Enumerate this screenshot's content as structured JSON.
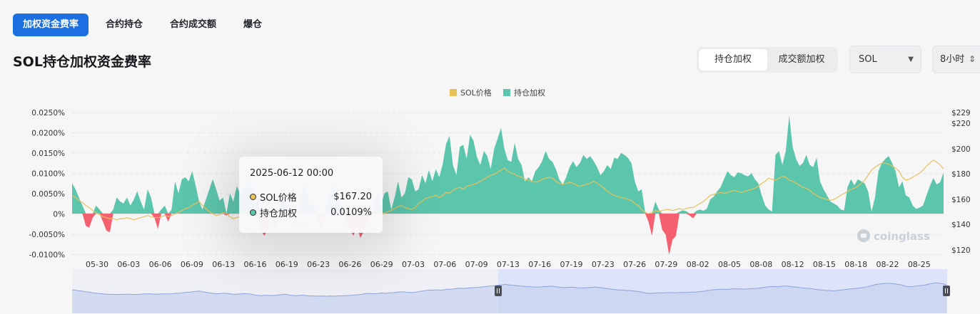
{
  "tabs": [
    {
      "label": "加权资金费率",
      "active": true
    },
    {
      "label": "合约持仓",
      "active": false
    },
    {
      "label": "合约成交额",
      "active": false
    },
    {
      "label": "爆仓",
      "active": false
    }
  ],
  "page_title": "SOL持仓加权资金费率",
  "weight_toggle": {
    "options": [
      "持仓加权",
      "成交额加权"
    ],
    "selected": "持仓加权"
  },
  "coin_select": {
    "value": "SOL"
  },
  "interval_select": {
    "value": "8小时"
  },
  "watermark": "coinglass",
  "colors": {
    "price": "#e9c15a",
    "positive": "#5cc6ac",
    "negative": "#f4606f",
    "accent": "#1c6fe0"
  },
  "tooltip": {
    "date": "2025-06-12 00:00",
    "rows": [
      {
        "label": "SOL价格",
        "value": "$167.20",
        "color": "#e9c15a"
      },
      {
        "label": "持仓加权",
        "value": "0.0109%",
        "color": "#5cc6ac"
      }
    ]
  },
  "chart_data": {
    "type": "area",
    "legend": [
      "SOL价格",
      "持仓加权"
    ],
    "legend_position": "top-center",
    "x_ticks": [
      "05-30",
      "06-03",
      "06-06",
      "06-09",
      "06-13",
      "06-16",
      "06-19",
      "06-23",
      "06-26",
      "06-29",
      "07-03",
      "07-06",
      "07-09",
      "07-13",
      "07-16",
      "07-19",
      "07-23",
      "07-26",
      "07-29",
      "08-02",
      "08-05",
      "08-08",
      "08-12",
      "08-15",
      "08-18",
      "08-22",
      "08-25"
    ],
    "y_left_ticks": [
      "0.0250%",
      "0.0200%",
      "0.0150%",
      "0.0100%",
      "0.0050%",
      "0%",
      "-0.0050%",
      "-0.0100%"
    ],
    "y_left_range": [
      -0.0105,
      0.025
    ],
    "y_right_ticks": [
      "$229",
      "$220",
      "$200",
      "$180",
      "$160",
      "$140",
      "$120"
    ],
    "grid": true,
    "series": [
      {
        "name": "持仓加权",
        "unit": "%",
        "values": [
          0.0075,
          0.006,
          0.004,
          0.002,
          -0.003,
          -0.0035,
          -0.001,
          0.002,
          0.001,
          -0.002,
          -0.0042,
          -0.0046,
          0.001,
          0.004,
          0.003,
          0.0025,
          0.004,
          0.002,
          0.0035,
          0.0055,
          0.003,
          0.001,
          0.006,
          0.004,
          -0.001,
          -0.0038,
          0.001,
          0.002,
          -0.002,
          0.001,
          0.008,
          0.005,
          0.0085,
          0.009,
          0.008,
          0.0105,
          0.007,
          0.003,
          0.001,
          0.0035,
          0.006,
          0.0085,
          0.006,
          0.0032,
          0.004,
          -0.0005,
          0.005,
          0.003,
          0.0068,
          0.005,
          0.0065,
          0.0075,
          0.0085,
          0.005,
          0.003,
          -0.004,
          -0.0055,
          -0.004,
          0.002,
          -0.004,
          0.0004,
          0.002,
          0.0045,
          0.0008,
          0.001,
          0.0018,
          0.0005,
          0.0055,
          0.0075,
          0.003,
          0.002,
          0.001,
          -0.0025,
          -0.0038,
          0.002,
          0.0044,
          0.0075,
          0.0042,
          0.002,
          0.0005,
          -0.001,
          -0.004,
          -0.0055,
          -0.003,
          -0.006,
          -0.0045,
          -0.0022,
          0.0006,
          0.001,
          0.006,
          0.002,
          0.005,
          0.0055,
          0.001,
          0.004,
          0.008,
          0.004,
          0.005,
          0.009,
          0.0085,
          0.0055,
          0.006,
          0.0095,
          0.0075,
          0.0108,
          0.008,
          0.011,
          0.009,
          0.0122,
          0.0172,
          0.0192,
          0.012,
          0.0095,
          0.0165,
          0.017,
          0.0135,
          0.0195,
          0.018,
          0.014,
          0.012,
          0.0155,
          0.0142,
          0.011,
          0.016,
          0.0185,
          0.0212,
          0.016,
          0.0132,
          0.0128,
          0.0175,
          0.0135,
          0.012,
          0.008,
          0.009,
          0.008,
          0.0105,
          0.0115,
          0.013,
          0.0155,
          0.0135,
          0.0128,
          0.011,
          0.0085,
          0.0072,
          0.009,
          0.0115,
          0.013,
          0.0115,
          0.0125,
          0.0145,
          0.0135,
          0.0142,
          0.013,
          0.0115,
          0.0095,
          0.0105,
          0.012,
          0.011,
          0.0138,
          0.0135,
          0.015,
          0.0145,
          0.0138,
          0.0125,
          0.008,
          0.0055,
          0.006,
          0.0005,
          -0.002,
          -0.0055,
          0.003,
          0.001,
          -0.004,
          -0.0052,
          -0.0102,
          -0.0065,
          -0.0055,
          0.0005,
          0.0008,
          0.0006,
          -0.0005,
          -0.0012,
          0.0007,
          0.001,
          0.0007,
          0.0012,
          0.0035,
          0.0042,
          0.0055,
          0.0065,
          0.0085,
          0.0105,
          0.0095,
          0.009,
          0.0102,
          0.01,
          0.0095,
          0.0092,
          0.01,
          0.0085,
          0.0075,
          0.0045,
          0.002,
          0.001,
          0.0005,
          0.0145,
          0.0155,
          0.012,
          0.0155,
          0.0242,
          0.0165,
          0.0135,
          0.0118,
          0.0125,
          0.0145,
          0.012,
          0.0115,
          0.0138,
          0.008,
          0.006,
          0.0045,
          0.003,
          0.0025,
          0.002,
          0.001,
          0.0008,
          0.0065,
          0.0085,
          0.007,
          0.0085,
          0.008,
          0.0075,
          0.0055,
          0.0005,
          0.004,
          0.0105,
          0.0125,
          0.0135,
          0.0142,
          0.0125,
          0.0105,
          0.0065,
          0.008,
          0.0045,
          0.004,
          0.002,
          0.0012,
          0.0015,
          0.002,
          0.0045,
          0.0068,
          0.0088,
          0.0072,
          0.0078,
          0.0102
        ]
      },
      {
        "name": "SOL价格",
        "unit": "$",
        "values": [
          178,
          176,
          173,
          171,
          168,
          166,
          163,
          161,
          159,
          157,
          156,
          155,
          155,
          154,
          155,
          155,
          156,
          155,
          154,
          155,
          156,
          157,
          158,
          157,
          156,
          156,
          157,
          158,
          157,
          158,
          160,
          161,
          163,
          165,
          166,
          168,
          170,
          172,
          168,
          165,
          162,
          160,
          158,
          159,
          161,
          160,
          157,
          155,
          156,
          157,
          159,
          158,
          156,
          152,
          150,
          148,
          151,
          150,
          149,
          150,
          152,
          154,
          156,
          152,
          150,
          148,
          150,
          151,
          149,
          147,
          147,
          146,
          146,
          146,
          146,
          147,
          146,
          147,
          148,
          148,
          149,
          150,
          152,
          153,
          155,
          158,
          160,
          159,
          158,
          160,
          162,
          160,
          162,
          163,
          165,
          167,
          168,
          166,
          165,
          164,
          166,
          170,
          172,
          175,
          176,
          177,
          178,
          176,
          178,
          181,
          180,
          183,
          185,
          186,
          184,
          187,
          188,
          189,
          190,
          192,
          194,
          196,
          198,
          199,
          201,
          203,
          205,
          202,
          200,
          199,
          197,
          196,
          194,
          193,
          192,
          191,
          192,
          194,
          195,
          196,
          195,
          192,
          190,
          189,
          190,
          191,
          190,
          188,
          187,
          188,
          189,
          190,
          192,
          190,
          188,
          185,
          182,
          180,
          178,
          177,
          176,
          175,
          174,
          173,
          170,
          168,
          164,
          161,
          160,
          161,
          163,
          162,
          163,
          164,
          164,
          163,
          164,
          165,
          164,
          165,
          166,
          166,
          168,
          170,
          172,
          175,
          178,
          179,
          180,
          181,
          180,
          181,
          182,
          183,
          182,
          181,
          182,
          183,
          184,
          185,
          187,
          190,
          192,
          195,
          194,
          193,
          195,
          197,
          196,
          193,
          192,
          190,
          188,
          186,
          185,
          183,
          180,
          178,
          176,
          175,
          174,
          173,
          174,
          176,
          178,
          180,
          182,
          184,
          185,
          187,
          190,
          193,
          198,
          203,
          206,
          208,
          210,
          210,
          209,
          207,
          205,
          202,
          196,
          193,
          194,
          196,
          198,
          200,
          203,
          207,
          210,
          213,
          211,
          208,
          204
        ]
      }
    ]
  }
}
